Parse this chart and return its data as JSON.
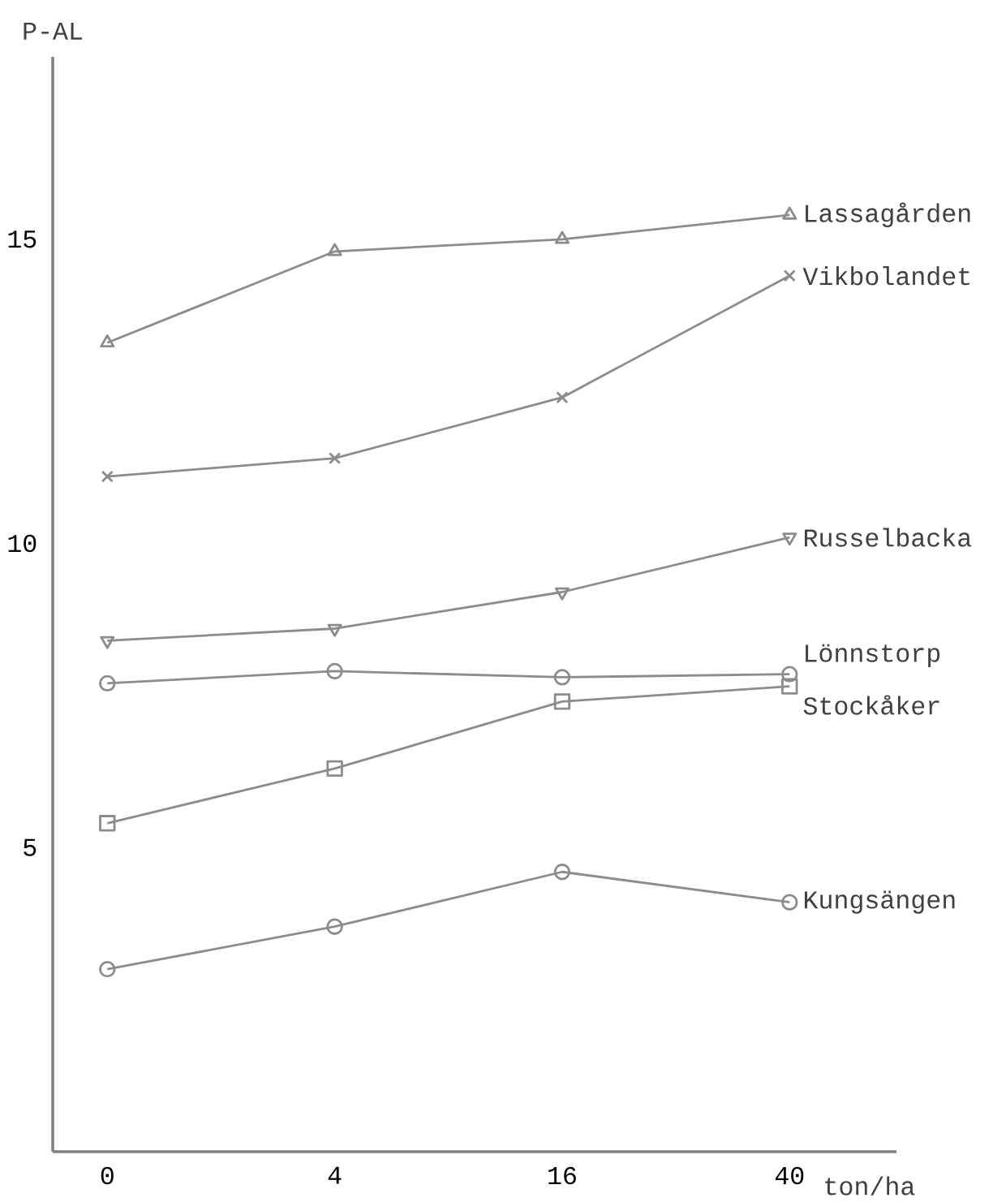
{
  "chart_data": {
    "type": "line",
    "xlabel": "ton/ha",
    "ylabel": "P-AL",
    "categories": [
      "0",
      "4",
      "16",
      "40"
    ],
    "ylim": [
      0,
      18
    ],
    "yticks": [
      5,
      10,
      15
    ],
    "legend": false,
    "grid": false,
    "series": [
      {
        "name": "Lassagården",
        "color": "#8c8c8c",
        "marker": "triangle",
        "values": [
          13.3,
          14.8,
          15.0,
          15.4
        ]
      },
      {
        "name": "Vikbolandet",
        "color": "#8c8c8c",
        "marker": "cross",
        "values": [
          11.1,
          11.4,
          12.4,
          14.4
        ]
      },
      {
        "name": "Russelbacka",
        "color": "#8c8c8c",
        "marker": "triangle-down",
        "values": [
          8.4,
          8.6,
          9.2,
          10.1
        ]
      },
      {
        "name": "Lönnstorp",
        "color": "#8c8c8c",
        "marker": "circle",
        "values": [
          7.7,
          7.9,
          7.8,
          7.85
        ]
      },
      {
        "name": "Stockåker",
        "color": "#8c8c8c",
        "marker": "square",
        "values": [
          5.4,
          6.3,
          7.4,
          7.65
        ]
      },
      {
        "name": "Kungsängen",
        "color": "#8c8c8c",
        "marker": "circle",
        "values": [
          3.0,
          3.7,
          4.6,
          4.1
        ]
      }
    ]
  }
}
